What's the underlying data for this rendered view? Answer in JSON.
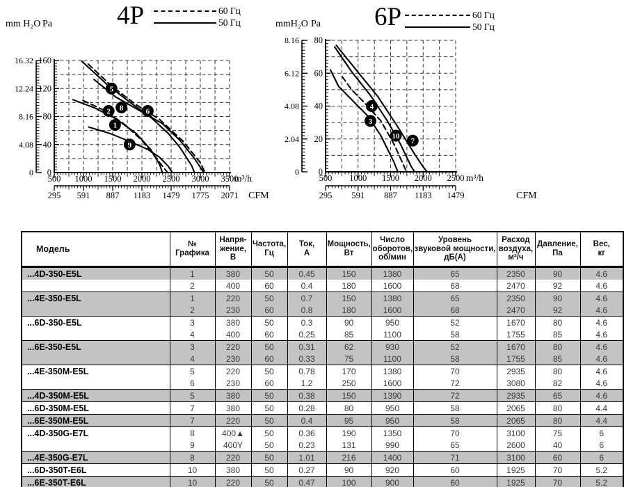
{
  "colors": {
    "row_shade": "#c3c3c3",
    "ink": "#000000",
    "page_bg": "#ffffff"
  },
  "chart_data": [
    {
      "type": "line",
      "title": "4P",
      "ylabel_left": "mm H₂O",
      "ylabel_right": "Pa",
      "xlabel": "m³/h",
      "x2label": "CFM",
      "xlim": [
        500,
        3500
      ],
      "ylim": [
        0,
        160
      ],
      "grid": true,
      "grid_x_step": 250,
      "grid_y_step": 20,
      "x_ticks": [
        500,
        1000,
        1500,
        2000,
        2500,
        3000,
        3500
      ],
      "cfm_ticks": [
        295,
        591,
        887,
        1183,
        1479,
        1775,
        2071
      ],
      "pa_ticks": [
        0,
        40,
        80,
        120,
        160
      ],
      "mmh2o_ticks": [
        "0",
        "4.08",
        "8.16",
        "12.24",
        "16.32"
      ],
      "legend": [
        {
          "label": "60 Гц",
          "style": "dashed"
        },
        {
          "label": "50 Гц",
          "style": "solid"
        }
      ],
      "series": [
        {
          "name": "1",
          "style": "solid",
          "points": [
            [
              820,
              104
            ],
            [
              1200,
              92
            ],
            [
              1550,
              77
            ],
            [
              1900,
              56
            ],
            [
              2150,
              33
            ],
            [
              2300,
              12
            ],
            [
              2350,
              0
            ]
          ]
        },
        {
          "name": "2",
          "style": "dashed",
          "points": [
            [
              990,
              103
            ],
            [
              1350,
              89
            ],
            [
              1700,
              69
            ],
            [
              2000,
              46
            ],
            [
              2250,
              20
            ],
            [
              2400,
              4
            ],
            [
              2440,
              0
            ]
          ]
        },
        {
          "name": "5",
          "style": "solid",
          "points": [
            [
              970,
              159
            ],
            [
              1400,
              126
            ],
            [
              1800,
              100
            ],
            [
              2150,
              79
            ],
            [
              2450,
              56
            ],
            [
              2650,
              36
            ],
            [
              2850,
              10
            ],
            [
              2900,
              0
            ]
          ]
        },
        {
          "name": "6",
          "style": "dashed",
          "points": [
            [
              1080,
              155
            ],
            [
              1500,
              122
            ],
            [
              1900,
              97
            ],
            [
              2300,
              76
            ],
            [
              2700,
              45
            ],
            [
              3000,
              14
            ],
            [
              3080,
              0
            ]
          ]
        },
        {
          "name": "8",
          "style": "solid",
          "points": [
            [
              1180,
              133
            ],
            [
              1550,
              108
            ],
            [
              1950,
              89
            ],
            [
              2350,
              70
            ],
            [
              2650,
              46
            ],
            [
              2900,
              20
            ],
            [
              3060,
              0
            ]
          ]
        },
        {
          "name": "9",
          "style": "solid",
          "points": [
            [
              1090,
              65
            ],
            [
              1450,
              56
            ],
            [
              1800,
              44
            ],
            [
              2100,
              33
            ],
            [
              2300,
              22
            ],
            [
              2450,
              9
            ],
            [
              2520,
              0
            ]
          ]
        }
      ],
      "badges": [
        {
          "n": "5",
          "x": 1480,
          "y": 120
        },
        {
          "n": "2",
          "x": 1430,
          "y": 88
        },
        {
          "n": "8",
          "x": 1650,
          "y": 93
        },
        {
          "n": "6",
          "x": 2100,
          "y": 88
        },
        {
          "n": "1",
          "x": 1540,
          "y": 68
        },
        {
          "n": "9",
          "x": 1790,
          "y": 40
        }
      ]
    },
    {
      "type": "line",
      "title": "6P",
      "ylabel_left": "mmH₂O",
      "ylabel_right": "Pa",
      "xlabel": "m³/h",
      "x2label": "CFM",
      "xlim": [
        500,
        2500
      ],
      "ylim": [
        0,
        80
      ],
      "grid": true,
      "grid_x_step": 250,
      "grid_y_step": 10,
      "x_ticks": [
        500,
        1000,
        1500,
        2000,
        2500
      ],
      "cfm_ticks": [
        295,
        591,
        887,
        1183,
        1479
      ],
      "pa_ticks": [
        0,
        20,
        40,
        60,
        80
      ],
      "mmh2o_ticks": [
        "0",
        "2.04",
        "4.08",
        "6.12",
        "8.16"
      ],
      "legend": [
        {
          "label": "60 Гц",
          "style": "dashed"
        },
        {
          "label": "50 Гц",
          "style": "solid"
        }
      ],
      "series": [
        {
          "name": "3",
          "style": "solid",
          "points": [
            [
              575,
              62
            ],
            [
              700,
              52
            ],
            [
              900,
              44
            ],
            [
              1150,
              34
            ],
            [
              1350,
              22
            ],
            [
              1550,
              6
            ],
            [
              1610,
              0
            ]
          ]
        },
        {
          "name": "4",
          "style": "dashed",
          "points": [
            [
              755,
              58
            ],
            [
              900,
              50
            ],
            [
              1100,
              42
            ],
            [
              1350,
              31
            ],
            [
              1550,
              17
            ],
            [
              1700,
              4
            ],
            [
              1745,
              0
            ]
          ]
        },
        {
          "name": "10",
          "style": "solid",
          "points": [
            [
              640,
              76
            ],
            [
              900,
              61
            ],
            [
              1200,
              46
            ],
            [
              1450,
              31
            ],
            [
              1650,
              17
            ],
            [
              1820,
              3
            ],
            [
              1870,
              0
            ]
          ]
        },
        {
          "name": "7",
          "style": "solid",
          "points": [
            [
              665,
              77
            ],
            [
              950,
              63
            ],
            [
              1300,
              46
            ],
            [
              1600,
              28
            ],
            [
              1850,
              12
            ],
            [
              2000,
              3
            ],
            [
              2060,
              0
            ]
          ]
        }
      ],
      "badges": [
        {
          "n": "4",
          "x": 1210,
          "y": 40
        },
        {
          "n": "3",
          "x": 1190,
          "y": 31
        },
        {
          "n": "10",
          "x": 1580,
          "y": 22
        },
        {
          "n": "7",
          "x": 1840,
          "y": 19
        }
      ]
    }
  ],
  "table": {
    "headers": [
      "Модель",
      "№\nГрафика",
      "Напря-\nжение,\nВ",
      "Частота,\nГц",
      "Ток,\nА",
      "Мощность,\nВт",
      "Число\nоборотов,\nоб/мин",
      "Уровень\nзвуковой мощности,\nдБ(А)",
      "Расход\nвоздуха,\nм³/ч",
      "Давление,\nПа",
      "Вес,\nкг"
    ],
    "groups": [
      {
        "model": "...4D-350-E5L",
        "rows": [
          {
            "shaded": true,
            "cells": [
              "1",
              "380",
              "50",
              "0.45",
              "150",
              "1380",
              "65",
              "2350",
              "90",
              "4.6"
            ]
          },
          {
            "shaded": false,
            "cells": [
              "2",
              "400",
              "60",
              "0.4",
              "180",
              "1600",
              "68",
              "2470",
              "92",
              "4.6"
            ]
          }
        ]
      },
      {
        "model": "...4E-350-E5L",
        "rows": [
          {
            "shaded": true,
            "cells": [
              "1",
              "220",
              "50",
              "0.7",
              "150",
              "1380",
              "65",
              "2350",
              "90",
              "4.6"
            ]
          },
          {
            "shaded": true,
            "cells": [
              "2",
              "230",
              "60",
              "0.8",
              "180",
              "1600",
              "68",
              "2470",
              "92",
              "4.6"
            ]
          }
        ]
      },
      {
        "model": "...6D-350-E5L",
        "rows": [
          {
            "shaded": false,
            "cells": [
              "3",
              "380",
              "50",
              "0.3",
              "90",
              "950",
              "52",
              "1670",
              "80",
              "4.6"
            ]
          },
          {
            "shaded": false,
            "cells": [
              "4",
              "400",
              "60",
              "0.25",
              "85",
              "1100",
              "58",
              "1755",
              "85",
              "4.6"
            ]
          }
        ]
      },
      {
        "model": "...6E-350-E5L",
        "rows": [
          {
            "shaded": true,
            "cells": [
              "3",
              "220",
              "50",
              "0.31",
              "62",
              "930",
              "52",
              "1670",
              "80",
              "4.6"
            ]
          },
          {
            "shaded": true,
            "cells": [
              "4",
              "230",
              "60",
              "0.33",
              "75",
              "1100",
              "58",
              "1755",
              "85",
              "4.6"
            ]
          }
        ]
      },
      {
        "model": "...4E-350M-E5L",
        "rows": [
          {
            "shaded": false,
            "cells": [
              "5",
              "220",
              "50",
              "0.78",
              "170",
              "1380",
              "70",
              "2935",
              "80",
              "4.6"
            ]
          },
          {
            "shaded": false,
            "cells": [
              "6",
              "230",
              "60",
              "1.2",
              "250",
              "1600",
              "72",
              "3080",
              "82",
              "4.6"
            ]
          }
        ]
      },
      {
        "model": "...4D-350M-E5L",
        "rows": [
          {
            "shaded": true,
            "cells": [
              "5",
              "380",
              "50",
              "0.38",
              "150",
              "1390",
              "72",
              "2935",
              "65",
              "4.6"
            ]
          }
        ]
      },
      {
        "model": "...6D-350M-E5L",
        "rows": [
          {
            "shaded": false,
            "cells": [
              "7",
              "380",
              "50",
              "0.28",
              "80",
              "950",
              "58",
              "2065",
              "80",
              "4.4"
            ]
          }
        ]
      },
      {
        "model": "...6E-350M-E5L",
        "rows": [
          {
            "shaded": true,
            "cells": [
              "7",
              "220",
              "50",
              "0.4",
              "95",
              "950",
              "58",
              "2065",
              "80",
              "4.4"
            ]
          }
        ]
      },
      {
        "model": "...4D-350G-E7L",
        "rows": [
          {
            "shaded": false,
            "cells": [
              "8",
              "400▲",
              "50",
              "0.36",
              "190",
              "1350",
              "70",
              "3100",
              "75",
              "6"
            ]
          },
          {
            "shaded": false,
            "cells": [
              "9",
              "400Y",
              "50",
              "0.23",
              "131",
              "990",
              "65",
              "2600",
              "40",
              "6"
            ]
          }
        ]
      },
      {
        "model": "...4E-350G-E7L",
        "rows": [
          {
            "shaded": true,
            "cells": [
              "8",
              "220",
              "50",
              "1.01",
              "216",
              "1400",
              "71",
              "3100",
              "60",
              "6"
            ]
          }
        ]
      },
      {
        "model": "...6D-350T-E6L",
        "rows": [
          {
            "shaded": false,
            "cells": [
              "10",
              "380",
              "50",
              "0.27",
              "90",
              "920",
              "60",
              "1925",
              "70",
              "5.2"
            ]
          }
        ]
      },
      {
        "model": "...6E-350T-E6L",
        "rows": [
          {
            "shaded": true,
            "cells": [
              "10",
              "220",
              "50",
              "0.47",
              "100",
              "900",
              "60",
              "1925",
              "70",
              "5.2"
            ]
          }
        ]
      }
    ]
  }
}
